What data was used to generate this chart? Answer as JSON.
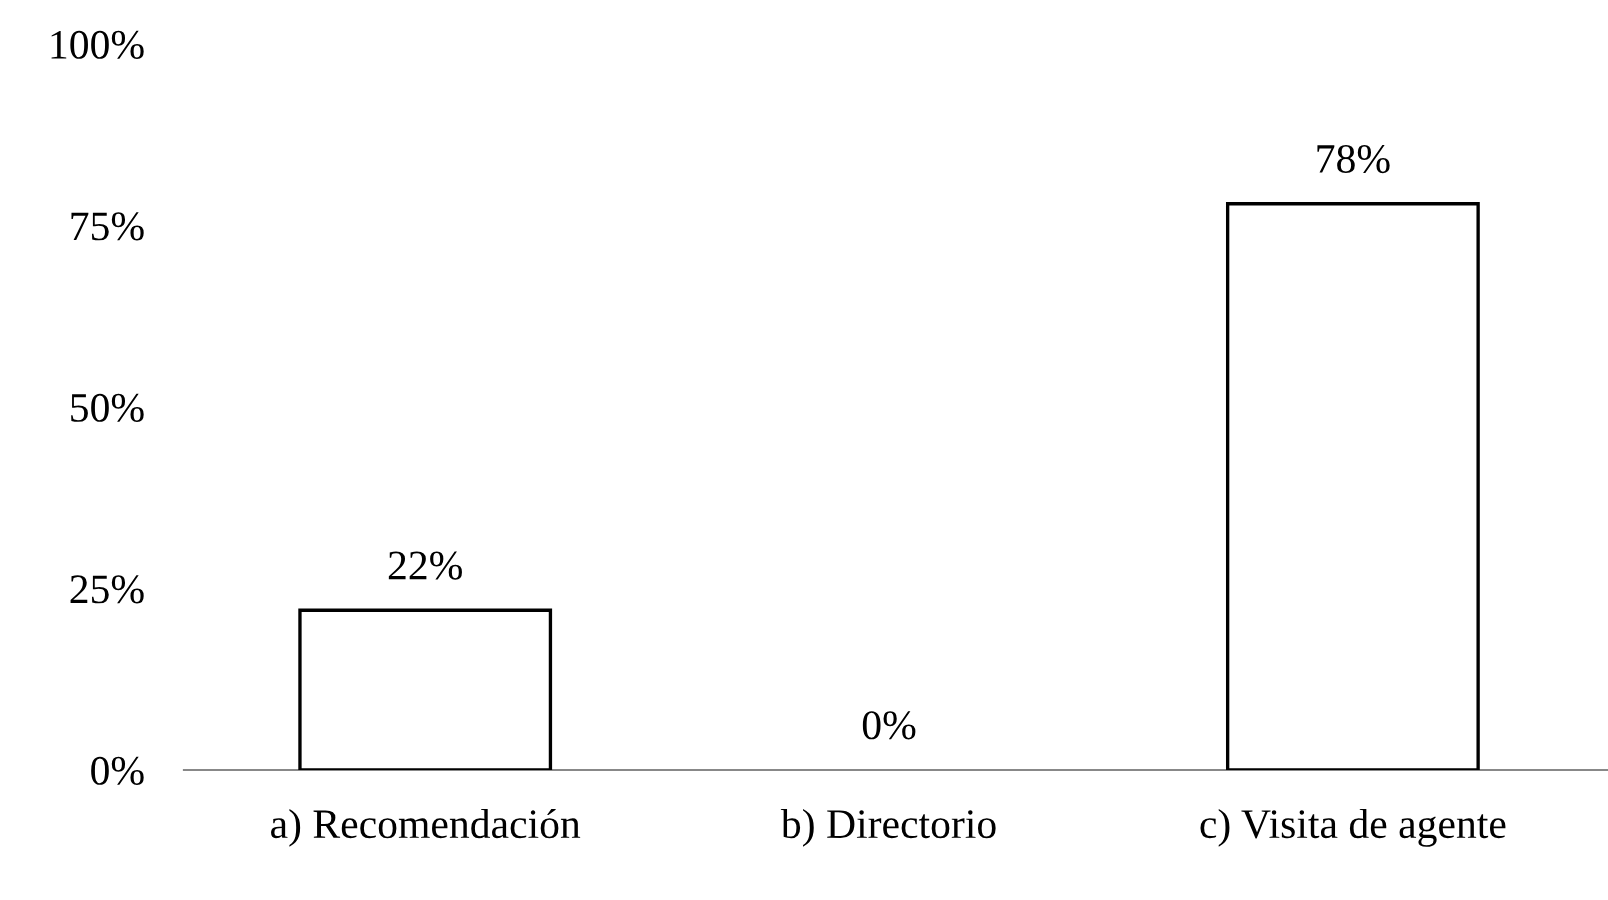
{
  "chart_data": {
    "type": "bar",
    "categories": [
      "a) Recomendación",
      "b) Directorio",
      "c) Visita de agente"
    ],
    "values": [
      22,
      0,
      78
    ],
    "color": "#ffffff",
    "ylim": [
      0,
      100
    ],
    "yticks": [
      {
        "value": 0,
        "label": "0%"
      },
      {
        "value": 25,
        "label": "25%"
      },
      {
        "value": 50,
        "label": "50%"
      },
      {
        "value": 75,
        "label": "75%"
      },
      {
        "value": 100,
        "label": "100%"
      }
    ],
    "value_labels": [
      "22%",
      "0%",
      "78%"
    ],
    "grid": false,
    "legend": false
  }
}
